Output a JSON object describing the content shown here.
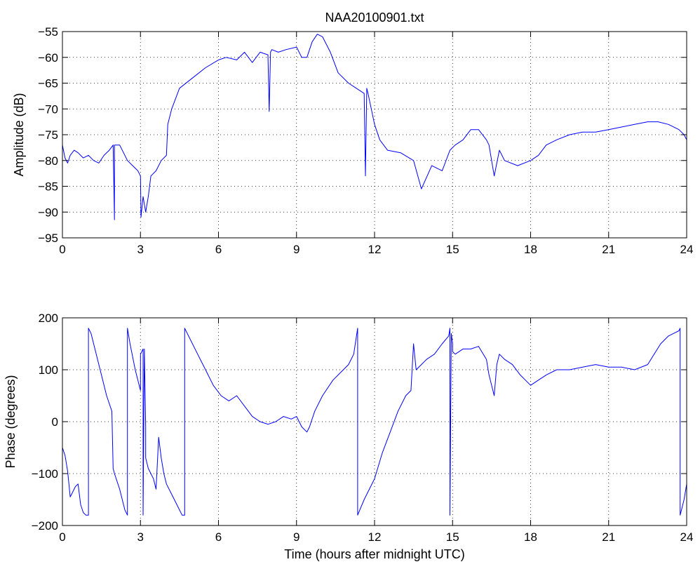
{
  "chart_data": [
    {
      "type": "line",
      "title": "NAA20100901.txt",
      "xlabel": "",
      "ylabel": "Amplitude (dB)",
      "xlim": [
        0,
        24
      ],
      "ylim": [
        -95,
        -55
      ],
      "xticks": [
        0,
        3,
        6,
        9,
        12,
        15,
        18,
        21,
        24
      ],
      "yticks": [
        -95,
        -90,
        -85,
        -80,
        -75,
        -70,
        -65,
        -60,
        -55
      ],
      "xtick_labels": [
        "0",
        "3",
        "6",
        "9",
        "12",
        "15",
        "18",
        "21",
        "24"
      ],
      "ytick_labels": [
        "−95",
        "−90",
        "−85",
        "−80",
        "−75",
        "−70",
        "−65",
        "−60",
        "−55"
      ],
      "grid": true,
      "color": "#0000ff",
      "series": [
        {
          "x": [
            0,
            0.1,
            0.2,
            0.3,
            0.45,
            0.6,
            0.8,
            1.0,
            1.2,
            1.4,
            1.6,
            1.8,
            1.95,
            2.0,
            2.0,
            2.05,
            2.2,
            2.5,
            2.7,
            2.9,
            3.0,
            3.02,
            3.1,
            3.2,
            3.3,
            3.4,
            3.6,
            3.8,
            4.0,
            4.05,
            4.2,
            4.5,
            5.0,
            5.5,
            6.0,
            6.3,
            6.7,
            7.0,
            7.3,
            7.6,
            7.9,
            7.95,
            8.0,
            8.05,
            8.3,
            8.6,
            9.0,
            9.2,
            9.4,
            9.6,
            9.8,
            10.0,
            10.3,
            10.6,
            11.0,
            11.3,
            11.6,
            11.65,
            11.7,
            11.75,
            12.0,
            12.2,
            12.5,
            13.0,
            13.5,
            13.8,
            14.2,
            14.6,
            14.9,
            15.1,
            15.4,
            15.7,
            16.0,
            16.3,
            16.4,
            16.6,
            16.8,
            17.0,
            17.5,
            18.0,
            18.3,
            18.6,
            19.0,
            19.5,
            20.0,
            20.5,
            21.0,
            21.5,
            22.0,
            22.5,
            22.9,
            23.3,
            23.7,
            23.9,
            24.0
          ],
          "y": [
            -77,
            -79.5,
            -80.5,
            -79,
            -78,
            -78.5,
            -79.5,
            -79,
            -80,
            -80.5,
            -79,
            -78,
            -77,
            -91.5,
            -77,
            -77,
            -77,
            -80,
            -81,
            -82,
            -83,
            -91,
            -87,
            -90,
            -87,
            -83,
            -82,
            -80,
            -79,
            -73,
            -70,
            -66,
            -64,
            -62,
            -60.5,
            -60,
            -60.5,
            -59,
            -61,
            -59,
            -59.5,
            -70.5,
            -59,
            -58.5,
            -59,
            -58.5,
            -58,
            -60,
            -60,
            -57,
            -55.5,
            -56,
            -59,
            -63,
            -65,
            -66,
            -67,
            -83,
            -66,
            -67,
            -73,
            -76,
            -78,
            -78.5,
            -80,
            -85.5,
            -81,
            -82,
            -78,
            -77,
            -76,
            -74,
            -74,
            -76,
            -77,
            -83,
            -78,
            -80,
            -81,
            -80,
            -79,
            -77,
            -76,
            -75,
            -74.5,
            -74.5,
            -74,
            -73.5,
            -73,
            -72.5,
            -72.5,
            -73,
            -74,
            -75,
            -76
          ]
        }
      ]
    },
    {
      "type": "line",
      "title": "",
      "xlabel": "Time (hours after midnight UTC)",
      "ylabel": "Phase (degrees)",
      "xlim": [
        0,
        24
      ],
      "ylim": [
        -200,
        200
      ],
      "xticks": [
        0,
        3,
        6,
        9,
        12,
        15,
        18,
        21,
        24
      ],
      "yticks": [
        -200,
        -100,
        0,
        100,
        200
      ],
      "xtick_labels": [
        "0",
        "3",
        "6",
        "9",
        "12",
        "15",
        "18",
        "21",
        "24"
      ],
      "ytick_labels": [
        "−200",
        "−100",
        "0",
        "100",
        "200"
      ],
      "grid": true,
      "color": "#0000ff",
      "series": [
        {
          "x": [
            0,
            0.1,
            0.2,
            0.3,
            0.35,
            0.5,
            0.6,
            0.7,
            0.8,
            0.9,
            1.0,
            1.0,
            1.1,
            1.3,
            1.5,
            1.7,
            1.9,
            1.95,
            2.0,
            2.2,
            2.4,
            2.5,
            2.5,
            2.6,
            2.8,
            3.0,
            3.0,
            3.1,
            3.1,
            3.15,
            3.2,
            3.2,
            3.3,
            3.4,
            3.5,
            3.6,
            3.7,
            3.8,
            3.9,
            4.0,
            4.2,
            4.4,
            4.6,
            4.7,
            4.7,
            4.9,
            5.2,
            5.5,
            5.8,
            6.1,
            6.4,
            6.7,
            7.0,
            7.3,
            7.6,
            7.9,
            8.2,
            8.5,
            8.8,
            9.0,
            9.2,
            9.4,
            9.5,
            9.7,
            10.0,
            10.4,
            10.8,
            11.0,
            11.2,
            11.35,
            11.35,
            11.6,
            12.0,
            12.3,
            12.6,
            12.9,
            13.2,
            13.4,
            13.5,
            13.6,
            13.8,
            14.0,
            14.3,
            14.6,
            14.85,
            14.9,
            14.9,
            14.95,
            15.0,
            15.0,
            15.1,
            15.4,
            15.7,
            16.0,
            16.3,
            16.4,
            16.6,
            16.7,
            16.8,
            17.0,
            17.3,
            17.6,
            17.8,
            18.0,
            18.3,
            18.6,
            19.0,
            19.5,
            20.0,
            20.5,
            21.0,
            21.5,
            22.0,
            22.5,
            23.0,
            23.3,
            23.5,
            23.7,
            23.75,
            23.75,
            23.8,
            23.9,
            24.0
          ],
          "y": [
            -50,
            -65,
            -95,
            -145,
            -140,
            -125,
            -120,
            -160,
            -175,
            -180,
            -180,
            180,
            170,
            130,
            90,
            50,
            20,
            -90,
            -100,
            -130,
            -170,
            -180,
            180,
            150,
            100,
            60,
            130,
            140,
            -180,
            140,
            -10,
            -70,
            -90,
            -100,
            -110,
            -130,
            -30,
            -70,
            -100,
            -120,
            -140,
            -160,
            -180,
            -180,
            180,
            160,
            130,
            100,
            70,
            50,
            40,
            50,
            30,
            10,
            0,
            -5,
            0,
            10,
            5,
            10,
            -10,
            -20,
            -10,
            20,
            50,
            80,
            100,
            110,
            130,
            180,
            -180,
            -150,
            -110,
            -60,
            -20,
            20,
            50,
            60,
            150,
            100,
            110,
            120,
            130,
            150,
            165,
            180,
            -180,
            170,
            150,
            135,
            130,
            140,
            140,
            145,
            120,
            90,
            50,
            110,
            130,
            120,
            110,
            90,
            80,
            70,
            80,
            90,
            100,
            100,
            105,
            110,
            105,
            105,
            100,
            110,
            150,
            165,
            170,
            175,
            180,
            -180,
            -170,
            -150,
            -120
          ]
        }
      ]
    }
  ]
}
